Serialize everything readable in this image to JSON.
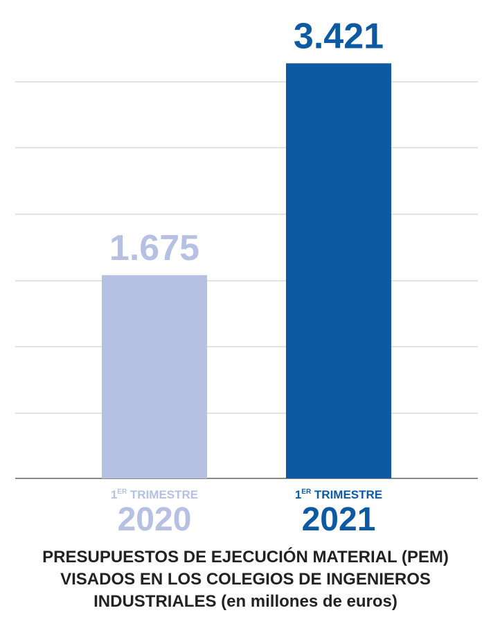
{
  "chart_data": {
    "type": "bar",
    "categories": [
      "2020",
      "2021"
    ],
    "category_prefix": [
      "1ER TRIMESTRE",
      "1ER TRIMESTRE"
    ],
    "values": [
      1675,
      3421
    ],
    "value_labels": [
      "1.675",
      "3.421"
    ],
    "colors": [
      "#b5c0e2",
      "#0d5aa3"
    ],
    "ylim": [
      0,
      3600
    ],
    "grid": true,
    "title_lines": [
      "PRESUPUESTOS DE EJECUCIÓN MATERIAL (PEM)",
      "VISADOS EN LOS COLEGIOS DE INGENIEROS",
      "INDUSTRIALES (en millones de euros)"
    ]
  }
}
